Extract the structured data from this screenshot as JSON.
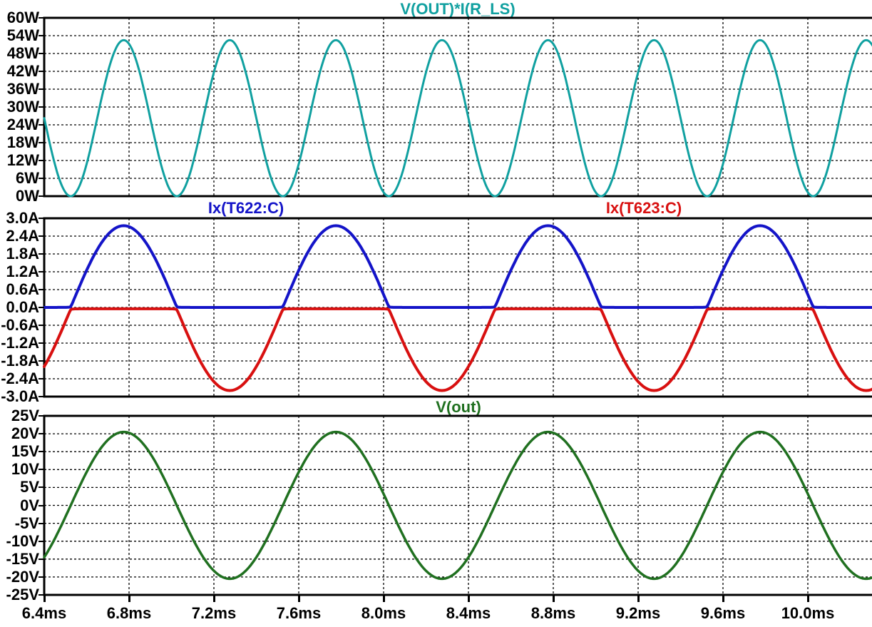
{
  "window": {
    "background": "#ffffff",
    "kind": "spice-waveform-viewer"
  },
  "x_axis": {
    "unit": "ms",
    "start_ms": 6.4,
    "end_ms": 10.3,
    "tick_step_ms": 0.4,
    "tick_labels": [
      "6.4ms",
      "6.8ms",
      "7.2ms",
      "7.6ms",
      "8.0ms",
      "8.4ms",
      "8.8ms",
      "9.2ms",
      "9.6ms",
      "10.0ms"
    ]
  },
  "colors": {
    "teal": "#10A0A0",
    "blue": "#1414C8",
    "red": "#D81010",
    "green": "#207020",
    "axis": "#000000",
    "grid": "#000000"
  },
  "chart_data": [
    {
      "type": "line",
      "pane": "power",
      "titles": [
        {
          "text": "V(OUT)*I(R_LS)",
          "color": "#10A0A0"
        }
      ],
      "ylim": [
        0,
        60
      ],
      "ytick_step": 6,
      "ytick_labels": [
        "60W",
        "54W",
        "48W",
        "42W",
        "36W",
        "30W",
        "24W",
        "18W",
        "12W",
        "6W",
        "0W"
      ],
      "xlim_ms": [
        6.4,
        10.3
      ],
      "grid": "dashed",
      "series": [
        {
          "name": "V(OUT)*I(R_LS)",
          "color": "#10A0A0",
          "kind": "sine_squared",
          "amplitude": 52.5,
          "period_ms": 1.0,
          "zero_cross_ms": 6.525,
          "min_value": 0,
          "max_value": 52.5,
          "stroke_width": 3
        }
      ]
    },
    {
      "type": "line",
      "pane": "transistor-currents",
      "titles": [
        {
          "text": "Ix(T622:C)",
          "color": "#1414C8"
        },
        {
          "text": "Ix(T623:C)",
          "color": "#D81010"
        }
      ],
      "ylim": [
        -3.0,
        3.0
      ],
      "ytick_step": 0.6,
      "ytick_labels": [
        "3.0A",
        "2.4A",
        "1.8A",
        "1.2A",
        "0.6A",
        "0.0A",
        "-0.6A",
        "-1.2A",
        "-1.8A",
        "-2.4A",
        "-3.0A"
      ],
      "xlim_ms": [
        6.4,
        10.3
      ],
      "grid": "dashed",
      "series": [
        {
          "name": "Ix(T622:C)",
          "color": "#1414C8",
          "kind": "halfwave_positive",
          "amplitude": 2.75,
          "period_ms": 1.0,
          "zero_cross_ms": 6.525,
          "min_value": 0.0,
          "max_value": 2.75,
          "stroke_width": 4
        },
        {
          "name": "Ix(T623:C)",
          "color": "#D81010",
          "kind": "halfwave_negative",
          "amplitude": 2.75,
          "period_ms": 1.0,
          "zero_cross_ms": 6.525,
          "min_value": -2.75,
          "max_value": 0.0,
          "stroke_width": 4
        }
      ]
    },
    {
      "type": "line",
      "pane": "output-voltage",
      "titles": [
        {
          "text": "V(out)",
          "color": "#207020"
        }
      ],
      "ylim": [
        -25,
        25
      ],
      "ytick_step": 5,
      "ytick_labels": [
        "25V",
        "20V",
        "15V",
        "10V",
        "5V",
        "0V",
        "-5V",
        "-10V",
        "-15V",
        "-20V",
        "-25V"
      ],
      "xlim_ms": [
        6.4,
        10.3
      ],
      "grid": "dashed",
      "series": [
        {
          "name": "V(out)",
          "color": "#207020",
          "kind": "sine",
          "amplitude": 20.5,
          "period_ms": 1.0,
          "zero_cross_ms": 6.525,
          "min_value": -20.5,
          "max_value": 20.5,
          "stroke_width": 3.5
        }
      ]
    }
  ]
}
